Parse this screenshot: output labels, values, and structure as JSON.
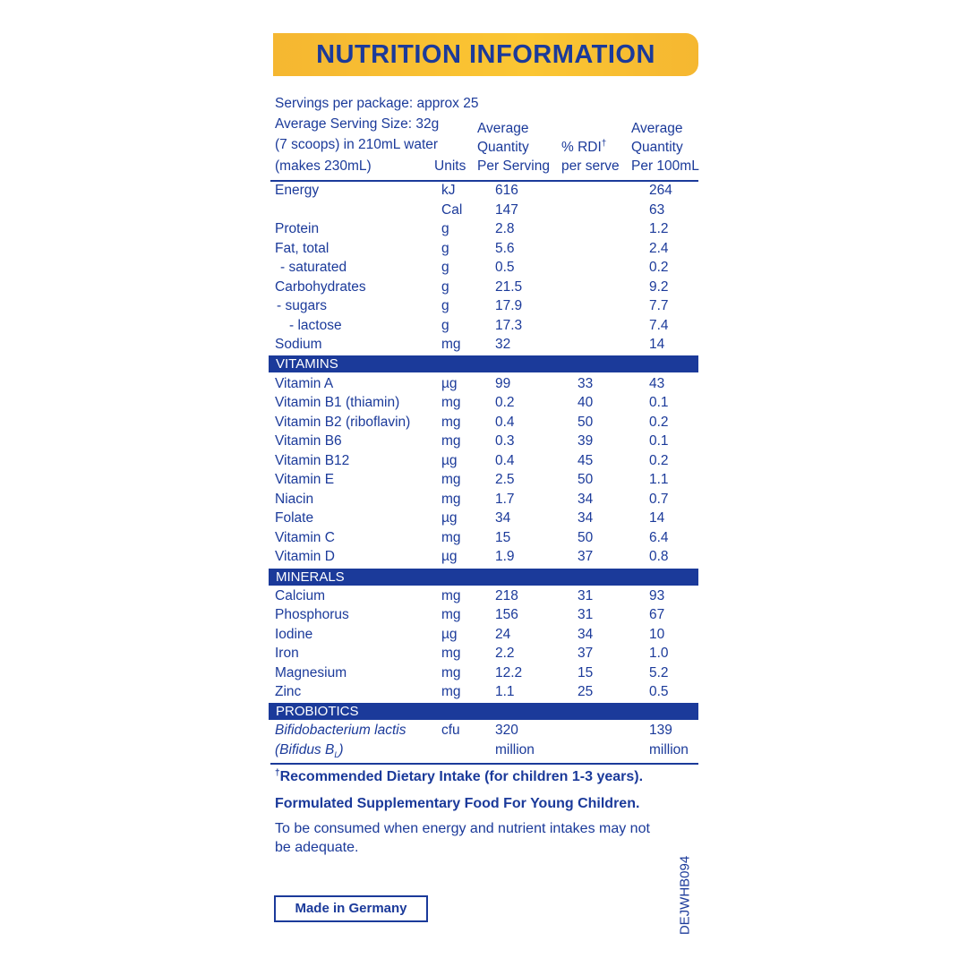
{
  "header": {
    "title": "NUTRITION INFORMATION"
  },
  "serving_info": [
    "Servings per package: approx 25",
    "Average Serving Size: 32g",
    "(7 scoops) in 210mL water",
    "(makes 230mL)"
  ],
  "columns": {
    "units": "Units",
    "per_serving": [
      "Average",
      "Quantity",
      "Per Serving"
    ],
    "rdi": [
      "% RDI",
      "†",
      "per serve"
    ],
    "per_100ml": [
      "Average",
      "Quantity",
      "Per 100mL"
    ]
  },
  "base": {
    "rows": [
      {
        "name": "Energy",
        "unit": "kJ",
        "per_serving": "616",
        "per_100ml": "264"
      },
      {
        "unit": "Cal",
        "per_serving": "147",
        "per_100ml": "63"
      },
      {
        "name": "Protein",
        "unit": "g",
        "per_serving": "2.8",
        "per_100ml": "1.2"
      },
      {
        "name": "Fat, total",
        "unit": "g",
        "per_serving": "5.6",
        "per_100ml": "2.4"
      },
      {
        "name": "- saturated",
        "unit": "g",
        "per_serving": "0.5",
        "per_100ml": "0.2"
      },
      {
        "name": "Carbohydrates",
        "unit": "g",
        "per_serving": "21.5",
        "per_100ml": "9.2"
      },
      {
        "name": "- sugars",
        "unit": "g",
        "per_serving": "17.9",
        "per_100ml": "7.7"
      },
      {
        "name": "- lactose",
        "unit": "g",
        "per_serving": "17.3",
        "per_100ml": "7.4"
      },
      {
        "name": "Sodium",
        "unit": "mg",
        "per_serving": "32",
        "per_100ml": "14"
      }
    ]
  },
  "vitamins": {
    "title": "VITAMINS",
    "rows": [
      {
        "name": "Vitamin A",
        "unit": "µg",
        "per_serving": "99",
        "rdi": "33",
        "per_100ml": "43"
      },
      {
        "name": "Vitamin B1 (thiamin)",
        "unit": "mg",
        "per_serving": "0.2",
        "rdi": "40",
        "per_100ml": "0.1"
      },
      {
        "name": "Vitamin B2 (riboflavin)",
        "unit": "mg",
        "per_serving": "0.4",
        "rdi": "50",
        "per_100ml": "0.2"
      },
      {
        "name": "Vitamin B6",
        "unit": "mg",
        "per_serving": "0.3",
        "rdi": "39",
        "per_100ml": "0.1"
      },
      {
        "name": "Vitamin B12",
        "unit": "µg",
        "per_serving": "0.4",
        "rdi": "45",
        "per_100ml": "0.2"
      },
      {
        "name": "Vitamin E",
        "unit": "mg",
        "per_serving": "2.5",
        "rdi": "50",
        "per_100ml": "1.1"
      },
      {
        "name": "Niacin",
        "unit": "mg",
        "per_serving": "1.7",
        "rdi": "34",
        "per_100ml": "0.7"
      },
      {
        "name": "Folate",
        "unit": "µg",
        "per_serving": "34",
        "rdi": "34",
        "per_100ml": "14"
      },
      {
        "name": "Vitamin C",
        "unit": "mg",
        "per_serving": "15",
        "rdi": "50",
        "per_100ml": "6.4"
      },
      {
        "name": "Vitamin D",
        "unit": "µg",
        "per_serving": "1.9",
        "rdi": "37",
        "per_100ml": "0.8"
      }
    ]
  },
  "minerals": {
    "title": "MINERALS",
    "rows": [
      {
        "name": "Calcium",
        "unit": "mg",
        "per_serving": "218",
        "rdi": "31",
        "per_100ml": "93"
      },
      {
        "name": "Phosphorus",
        "unit": "mg",
        "per_serving": "156",
        "rdi": "31",
        "per_100ml": "67"
      },
      {
        "name": "Iodine",
        "unit": "µg",
        "per_serving": "24",
        "rdi": "34",
        "per_100ml": "10"
      },
      {
        "name": "Iron",
        "unit": "mg",
        "per_serving": "2.2",
        "rdi": "37",
        "per_100ml": "1.0"
      },
      {
        "name": "Magnesium",
        "unit": "mg",
        "per_serving": "12.2",
        "rdi": "15",
        "per_100ml": "5.2"
      },
      {
        "name": "Zinc",
        "unit": "mg",
        "per_serving": "1.1",
        "rdi": "25",
        "per_100ml": "0.5"
      }
    ]
  },
  "probiotics": {
    "title": "PROBIOTICS",
    "rows": [
      {
        "name": "Bifidobacterium lactis",
        "name_2": [
          "(Bifidus B",
          "L",
          ")"
        ],
        "unit": "cfu",
        "per_serving": [
          "320",
          "million"
        ],
        "per_100ml": [
          "139",
          "million"
        ]
      }
    ]
  },
  "footnotes": [
    [
      "†",
      "Recommended Dietary Intake (for children 1-3 years)."
    ],
    "Formulated Supplementary Food For Young Children.",
    "To be consumed when energy and nutrient intakes may not be adequate."
  ],
  "badge": "Made in Germany",
  "code": "DEJWHB094"
}
